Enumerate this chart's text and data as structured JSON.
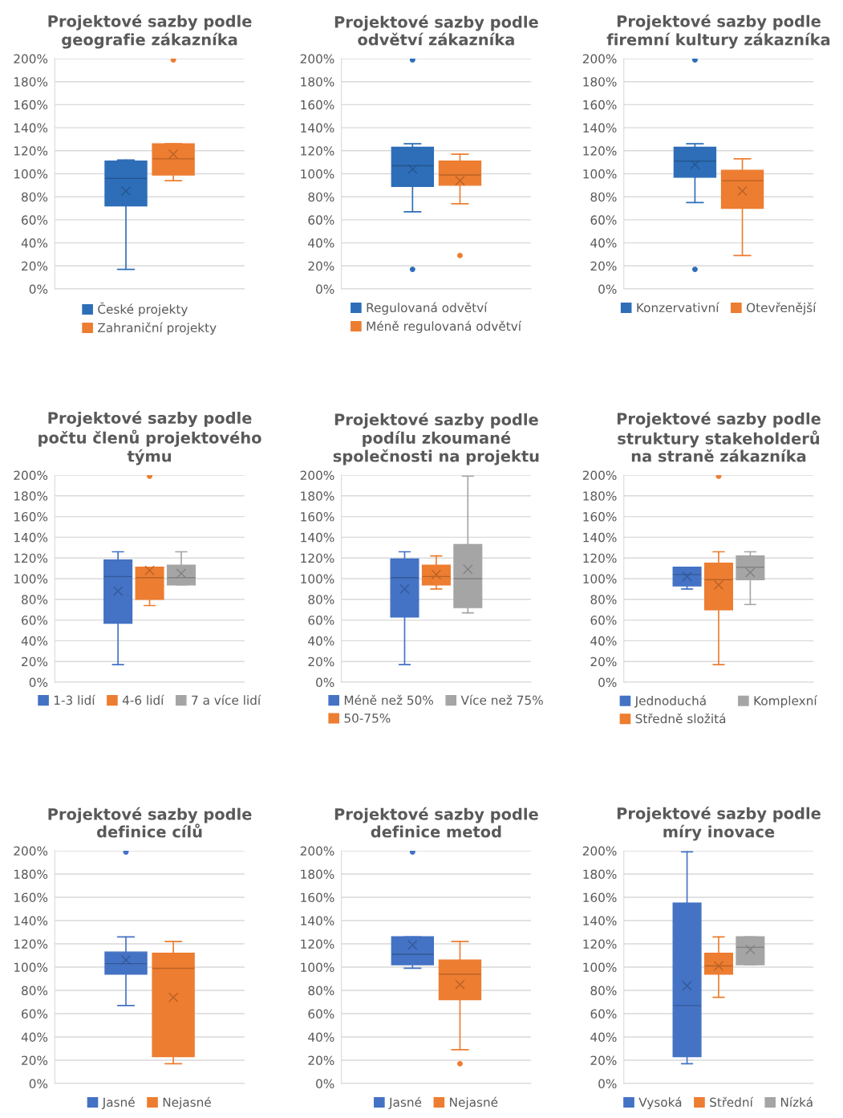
{
  "chart_data": [
    {
      "type": "box",
      "title": "Projektové sazby podle geografie zákazníka",
      "categories": [
        null
      ],
      "ylim": [
        0,
        200
      ],
      "yticks": [
        {
          "value": 0,
          "label": "0%"
        },
        {
          "value": 20,
          "label": "20%"
        },
        {
          "value": 40,
          "label": "40%"
        },
        {
          "value": 60,
          "label": "60%"
        },
        {
          "value": 80,
          "label": "80%"
        },
        {
          "value": 100,
          "label": "100%"
        },
        {
          "value": 120,
          "label": "120%"
        },
        {
          "value": 140,
          "label": "140%"
        },
        {
          "value": 160,
          "label": "160%"
        },
        {
          "value": 180,
          "label": "180%"
        },
        {
          "value": 200,
          "label": "200%"
        }
      ],
      "grid": "y",
      "legend": "bottom",
      "series": [
        {
          "name": "České projekty",
          "color": "#2e6eb8",
          "boxes": [
            {
              "low": 17,
              "q1": 72,
              "median": 96,
              "q3": 111,
              "high": 112,
              "mean": 85
            }
          ]
        },
        {
          "name": "Zahraniční projekty",
          "color": "#ed7d31",
          "boxes": [
            {
              "low": 94,
              "q1": 99,
              "median": 113,
              "q3": 126,
              "high": 126,
              "mean": 117,
              "outliers": [
                199
              ]
            }
          ]
        }
      ]
    },
    {
      "type": "box",
      "title": "Projektové sazby podle odvětví zákazníka",
      "categories": [
        null
      ],
      "ylim": [
        0,
        200
      ],
      "yticks": [
        {
          "value": 0,
          "label": "0%"
        },
        {
          "value": 20,
          "label": "20%"
        },
        {
          "value": 40,
          "label": "40%"
        },
        {
          "value": 60,
          "label": "60%"
        },
        {
          "value": 80,
          "label": "80%"
        },
        {
          "value": 100,
          "label": "100%"
        },
        {
          "value": 120,
          "label": "120%"
        },
        {
          "value": 140,
          "label": "140%"
        },
        {
          "value": 160,
          "label": "160%"
        },
        {
          "value": 180,
          "label": "180%"
        },
        {
          "value": 200,
          "label": "200%"
        }
      ],
      "grid": "y",
      "legend": "bottom",
      "series": [
        {
          "name": "Regulovaná odvětví",
          "color": "#2e6eb8",
          "boxes": [
            {
              "low": 67,
              "q1": 89,
              "median": 107,
              "q3": 123,
              "high": 126,
              "mean": 104,
              "outliers": [
                199,
                17
              ]
            }
          ]
        },
        {
          "name": "Méně regulovaná odvětví",
          "color": "#ed7d31",
          "boxes": [
            {
              "low": 74,
              "q1": 90,
              "median": 99,
              "q3": 111,
              "high": 117,
              "mean": 94,
              "outliers": [
                29
              ]
            }
          ]
        }
      ]
    },
    {
      "type": "box",
      "title": "Projektové sazby podle firemní kultury zákazníka",
      "categories": [
        null
      ],
      "ylim": [
        0,
        200
      ],
      "yticks": [
        {
          "value": 0,
          "label": "0%"
        },
        {
          "value": 20,
          "label": "20%"
        },
        {
          "value": 40,
          "label": "40%"
        },
        {
          "value": 60,
          "label": "60%"
        },
        {
          "value": 80,
          "label": "80%"
        },
        {
          "value": 100,
          "label": "100%"
        },
        {
          "value": 120,
          "label": "120%"
        },
        {
          "value": 140,
          "label": "140%"
        },
        {
          "value": 160,
          "label": "160%"
        },
        {
          "value": 180,
          "label": "180%"
        },
        {
          "value": 200,
          "label": "200%"
        }
      ],
      "grid": "y",
      "legend": "bottom",
      "series": [
        {
          "name": "Konzervativní",
          "color": "#2e6eb8",
          "boxes": [
            {
              "low": 75,
              "q1": 97,
              "median": 111,
              "q3": 123,
              "high": 126,
              "mean": 108,
              "outliers": [
                199,
                17
              ]
            }
          ]
        },
        {
          "name": "Otevřenější",
          "color": "#ed7d31",
          "boxes": [
            {
              "low": 29,
              "q1": 70,
              "median": 94,
              "q3": 103,
              "high": 113,
              "mean": 85
            }
          ]
        }
      ]
    },
    {
      "type": "box",
      "title": "Projektové sazby podle počtu členů projektového týmu",
      "categories": [
        null
      ],
      "ylim": [
        0,
        200
      ],
      "yticks": [
        {
          "value": 0,
          "label": "0%"
        },
        {
          "value": 20,
          "label": "20%"
        },
        {
          "value": 40,
          "label": "40%"
        },
        {
          "value": 60,
          "label": "60%"
        },
        {
          "value": 80,
          "label": "80%"
        },
        {
          "value": 100,
          "label": "100%"
        },
        {
          "value": 120,
          "label": "120%"
        },
        {
          "value": 140,
          "label": "140%"
        },
        {
          "value": 160,
          "label": "160%"
        },
        {
          "value": 180,
          "label": "180%"
        },
        {
          "value": 200,
          "label": "200%"
        }
      ],
      "grid": "y",
      "legend": "bottom",
      "series": [
        {
          "name": "1-3 lidí",
          "color": "#4472c4",
          "boxes": [
            {
              "low": 17,
              "q1": 57,
              "median": 102,
              "q3": 118,
              "high": 126,
              "mean": 88
            }
          ]
        },
        {
          "name": "4-6 lidí",
          "color": "#ed7d31",
          "boxes": [
            {
              "low": 74,
              "q1": 80,
              "median": 101,
              "q3": 111,
              "high": 111,
              "mean": 108,
              "outliers": [
                199
              ]
            }
          ]
        },
        {
          "name": "7 a více lidí",
          "color": "#a5a5a5",
          "boxes": [
            {
              "low": 94,
              "q1": 94,
              "median": 101,
              "q3": 113,
              "high": 126,
              "mean": 105
            }
          ]
        }
      ]
    },
    {
      "type": "box",
      "title": "Projektové sazby podle podílu zkoumané společnosti na projektu",
      "categories": [
        null
      ],
      "ylim": [
        0,
        200
      ],
      "yticks": [
        {
          "value": 0,
          "label": "0%"
        },
        {
          "value": 20,
          "label": "20%"
        },
        {
          "value": 40,
          "label": "40%"
        },
        {
          "value": 60,
          "label": "60%"
        },
        {
          "value": 80,
          "label": "80%"
        },
        {
          "value": 100,
          "label": "100%"
        },
        {
          "value": 120,
          "label": "120%"
        },
        {
          "value": 140,
          "label": "140%"
        },
        {
          "value": 160,
          "label": "160%"
        },
        {
          "value": 180,
          "label": "180%"
        },
        {
          "value": 200,
          "label": "200%"
        }
      ],
      "grid": "y",
      "legend": "bottom",
      "series": [
        {
          "name": "Méně než 50%",
          "color": "#4472c4",
          "boxes": [
            {
              "low": 17,
              "q1": 63,
              "median": 101,
              "q3": 119,
              "high": 126,
              "mean": 90
            }
          ]
        },
        {
          "name": "50-75%",
          "color": "#ed7d31",
          "boxes": [
            {
              "low": 90,
              "q1": 94,
              "median": 102,
              "q3": 113,
              "high": 122,
              "mean": 104
            }
          ]
        },
        {
          "name": "Více než 75%",
          "color": "#a5a5a5",
          "boxes": [
            {
              "low": 67,
              "q1": 72,
              "median": 100,
              "q3": 133,
              "high": 199,
              "mean": 109
            }
          ]
        }
      ]
    },
    {
      "type": "box",
      "title": "Projektové sazby podle struktury stakeholderů na straně zákazníka",
      "categories": [
        null
      ],
      "ylim": [
        0,
        200
      ],
      "yticks": [
        {
          "value": 0,
          "label": "0%"
        },
        {
          "value": 20,
          "label": "20%"
        },
        {
          "value": 40,
          "label": "40%"
        },
        {
          "value": 60,
          "label": "60%"
        },
        {
          "value": 80,
          "label": "80%"
        },
        {
          "value": 100,
          "label": "100%"
        },
        {
          "value": 120,
          "label": "120%"
        },
        {
          "value": 140,
          "label": "140%"
        },
        {
          "value": 160,
          "label": "160%"
        },
        {
          "value": 180,
          "label": "180%"
        },
        {
          "value": 200,
          "label": "200%"
        }
      ],
      "grid": "y",
      "legend": "bottom",
      "series": [
        {
          "name": "Jednoduchá",
          "color": "#4472c4",
          "boxes": [
            {
              "low": 90,
              "q1": 93,
              "median": 104,
              "q3": 111,
              "high": 111,
              "mean": 102
            }
          ]
        },
        {
          "name": "Středně složitá",
          "color": "#ed7d31",
          "boxes": [
            {
              "low": 17,
              "q1": 70,
              "median": 99,
              "q3": 115,
              "high": 126,
              "mean": 94,
              "outliers": [
                199
              ]
            }
          ]
        },
        {
          "name": "Komplexní",
          "color": "#a5a5a5",
          "boxes": [
            {
              "low": 75,
              "q1": 99,
              "median": 111,
              "q3": 122,
              "high": 126,
              "mean": 106
            }
          ]
        }
      ]
    },
    {
      "type": "box",
      "title": "Projektové sazby podle definice cílů",
      "categories": [
        null
      ],
      "ylim": [
        0,
        200
      ],
      "yticks": [
        {
          "value": 0,
          "label": "0%"
        },
        {
          "value": 20,
          "label": "20%"
        },
        {
          "value": 40,
          "label": "40%"
        },
        {
          "value": 60,
          "label": "60%"
        },
        {
          "value": 80,
          "label": "80%"
        },
        {
          "value": 100,
          "label": "100%"
        },
        {
          "value": 120,
          "label": "120%"
        },
        {
          "value": 140,
          "label": "140%"
        },
        {
          "value": 160,
          "label": "160%"
        },
        {
          "value": 180,
          "label": "180%"
        },
        {
          "value": 200,
          "label": "200%"
        }
      ],
      "grid": "y",
      "legend": "bottom",
      "series": [
        {
          "name": "Jasné",
          "color": "#4472c4",
          "boxes": [
            {
              "low": 67,
              "q1": 94,
              "median": 103,
              "q3": 113,
              "high": 126,
              "mean": 106,
              "outliers": [
                199
              ]
            }
          ]
        },
        {
          "name": "Nejasné",
          "color": "#ed7d31",
          "boxes": [
            {
              "low": 17,
              "q1": 23,
              "median": 99,
              "q3": 112,
              "high": 122,
              "mean": 74
            }
          ]
        }
      ]
    },
    {
      "type": "box",
      "title": "Projektové sazby podle definice metod",
      "categories": [
        null
      ],
      "ylim": [
        0,
        200
      ],
      "yticks": [
        {
          "value": 0,
          "label": "0%"
        },
        {
          "value": 20,
          "label": "20%"
        },
        {
          "value": 40,
          "label": "40%"
        },
        {
          "value": 60,
          "label": "60%"
        },
        {
          "value": 80,
          "label": "80%"
        },
        {
          "value": 100,
          "label": "100%"
        },
        {
          "value": 120,
          "label": "120%"
        },
        {
          "value": 140,
          "label": "140%"
        },
        {
          "value": 160,
          "label": "160%"
        },
        {
          "value": 180,
          "label": "180%"
        },
        {
          "value": 200,
          "label": "200%"
        }
      ],
      "grid": "y",
      "legend": "bottom",
      "series": [
        {
          "name": "Jasné",
          "color": "#4472c4",
          "boxes": [
            {
              "low": 99,
              "q1": 102,
              "median": 111,
              "q3": 126,
              "high": 126,
              "mean": 119,
              "outliers": [
                199
              ]
            }
          ]
        },
        {
          "name": "Nejasné",
          "color": "#ed7d31",
          "boxes": [
            {
              "low": 29,
              "q1": 72,
              "median": 94,
              "q3": 106,
              "high": 122,
              "mean": 85,
              "outliers": [
                17
              ]
            }
          ]
        }
      ]
    },
    {
      "type": "box",
      "title": "Projektové sazby podle míry inovace",
      "categories": [
        null
      ],
      "ylim": [
        0,
        200
      ],
      "yticks": [
        {
          "value": 0,
          "label": "0%"
        },
        {
          "value": 20,
          "label": "20%"
        },
        {
          "value": 40,
          "label": "40%"
        },
        {
          "value": 60,
          "label": "60%"
        },
        {
          "value": 80,
          "label": "80%"
        },
        {
          "value": 100,
          "label": "100%"
        },
        {
          "value": 120,
          "label": "120%"
        },
        {
          "value": 140,
          "label": "140%"
        },
        {
          "value": 160,
          "label": "160%"
        },
        {
          "value": 180,
          "label": "180%"
        },
        {
          "value": 200,
          "label": "200%"
        }
      ],
      "grid": "y",
      "legend": "bottom",
      "series": [
        {
          "name": "Vysoká",
          "color": "#4472c4",
          "boxes": [
            {
              "low": 17,
              "q1": 23,
              "median": 67,
              "q3": 155,
              "high": 199,
              "mean": 84
            }
          ]
        },
        {
          "name": "Střední",
          "color": "#ed7d31",
          "boxes": [
            {
              "low": 74,
              "q1": 94,
              "median": 101,
              "q3": 112,
              "high": 126,
              "mean": 101
            }
          ]
        },
        {
          "name": "Nízká",
          "color": "#a5a5a5",
          "boxes": [
            {
              "low": 102,
              "q1": 102,
              "median": 117,
              "q3": 126,
              "high": 126,
              "mean": 115
            }
          ]
        }
      ]
    }
  ]
}
